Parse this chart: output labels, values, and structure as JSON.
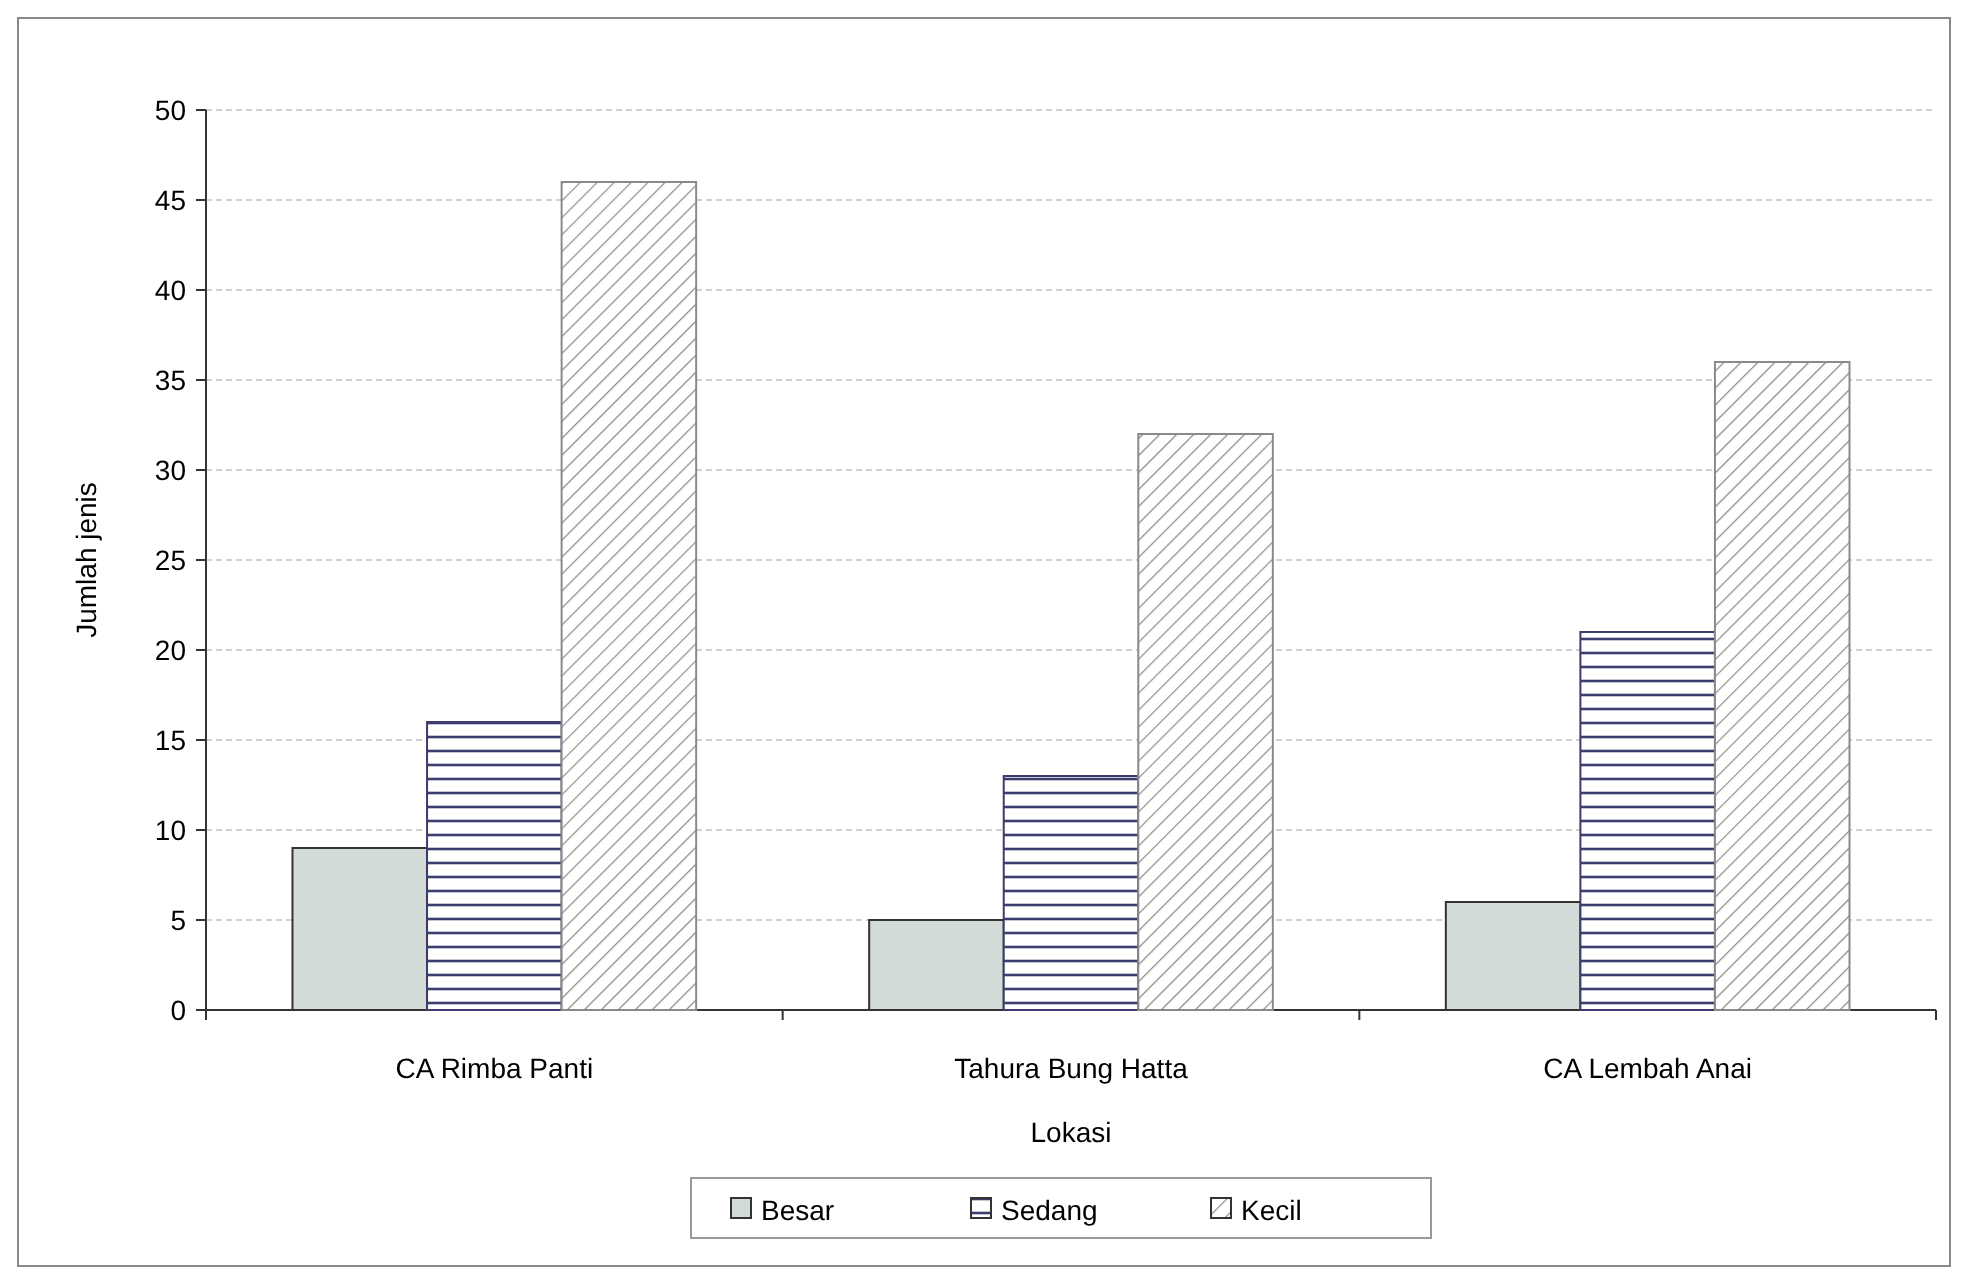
{
  "chart_data": {
    "type": "bar",
    "xlabel": "Lokasi",
    "ylabel": "Jumlah jenis",
    "categories": [
      "CA Rimba Panti",
      "Tahura Bung Hatta",
      "CA Lembah Anai"
    ],
    "series": [
      {
        "name": "Besar",
        "color": "#d3dbd7",
        "values": [
          9,
          5,
          6
        ]
      },
      {
        "name": "Sedang",
        "color": "#3c3c6e",
        "values": [
          16,
          13,
          21
        ]
      },
      {
        "name": "Kecil",
        "color": "#8a8a8a",
        "values": [
          46,
          32,
          36
        ]
      }
    ],
    "ylim": [
      0,
      50
    ],
    "yticks": [
      0,
      5,
      10,
      15,
      20,
      25,
      30,
      35,
      40,
      45,
      50
    ],
    "grid": "y",
    "legend": "bottom"
  }
}
